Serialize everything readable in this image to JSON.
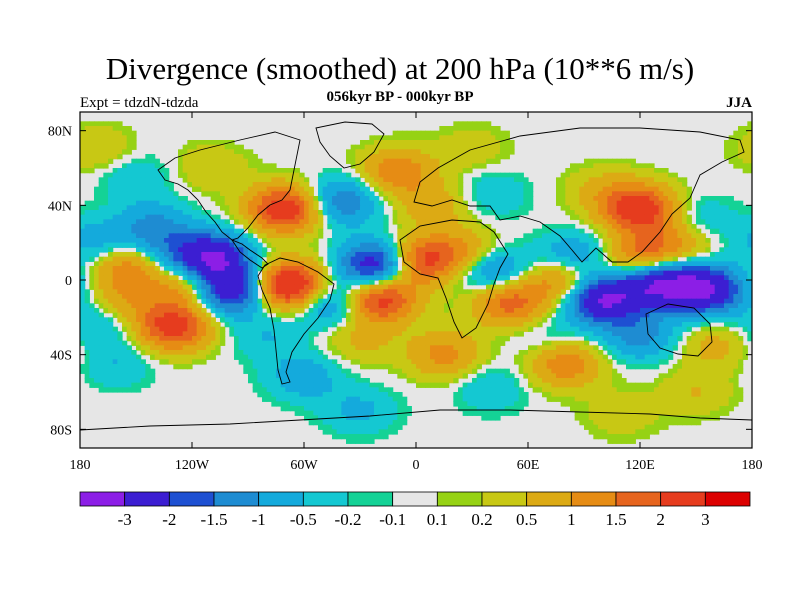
{
  "title": "Divergence (smoothed) at 200 hPa (10**6 m/s)",
  "left_label": "Expt = tdzdN-tdzda",
  "center_label": "056kyr BP - 000kyr BP",
  "right_label": "JJA",
  "map": {
    "lon_range": [
      -180,
      180
    ],
    "lat_range": [
      -90,
      90
    ],
    "lon_ticks": [
      {
        "value": -180,
        "label": "180"
      },
      {
        "value": -120,
        "label": "120W"
      },
      {
        "value": -60,
        "label": "60W"
      },
      {
        "value": 0,
        "label": "0"
      },
      {
        "value": 60,
        "label": "60E"
      },
      {
        "value": 120,
        "label": "120E"
      },
      {
        "value": 180,
        "label": "180"
      }
    ],
    "lat_ticks": [
      {
        "value": 80,
        "label": "80N"
      },
      {
        "value": 40,
        "label": "40N"
      },
      {
        "value": 0,
        "label": "0"
      },
      {
        "value": -40,
        "label": "40S"
      },
      {
        "value": -80,
        "label": "80S"
      }
    ],
    "background_color": "#e6e6e6",
    "color_levels": [
      -3.0,
      -2.0,
      -1.5,
      -1.0,
      -0.5,
      -0.2,
      -0.1,
      0.1,
      0.2,
      0.5,
      1.0,
      1.5,
      2.0,
      3.0
    ],
    "colors": [
      "#8c1ee6",
      "#3c1ed2",
      "#1e50d2",
      "#1e8cd2",
      "#14aadc",
      "#14c8d2",
      "#14d296",
      "#e6e6e6",
      "#96d214",
      "#c8c814",
      "#dcaa14",
      "#e68c14",
      "#e6641e",
      "#e63c1e",
      "#dc0000"
    ],
    "blobs": [
      {
        "lon": -110,
        "lat": 12,
        "value": -3.2
      },
      {
        "lon": -140,
        "lat": 10,
        "value": -1.5
      },
      {
        "lon": -150,
        "lat": 8,
        "value": 2.2
      },
      {
        "lon": -120,
        "lat": -2,
        "value": 1.6
      },
      {
        "lon": -155,
        "lat": -10,
        "value": 0.8
      },
      {
        "lon": -100,
        "lat": -5,
        "value": -3.0
      },
      {
        "lon": -68,
        "lat": -3,
        "value": 3.2
      },
      {
        "lon": -45,
        "lat": -12,
        "value": -1.5
      },
      {
        "lon": -20,
        "lat": -10,
        "value": 2.6
      },
      {
        "lon": -20,
        "lat": 8,
        "value": -3.1
      },
      {
        "lon": 0,
        "lat": 10,
        "value": 2.4
      },
      {
        "lon": 25,
        "lat": 14,
        "value": 1.2
      },
      {
        "lon": 40,
        "lat": 5,
        "value": -1.4
      },
      {
        "lon": 50,
        "lat": -12,
        "value": 1.8
      },
      {
        "lon": 80,
        "lat": 0,
        "value": 1.6
      },
      {
        "lon": 85,
        "lat": 12,
        "value": -1.2
      },
      {
        "lon": 100,
        "lat": -10,
        "value": -3.2
      },
      {
        "lon": 130,
        "lat": -2,
        "value": -2.8
      },
      {
        "lon": 155,
        "lat": -5,
        "value": -3.0
      },
      {
        "lon": 120,
        "lat": 12,
        "value": 1.6
      },
      {
        "lon": 140,
        "lat": 20,
        "value": 1.0
      },
      {
        "lon": 150,
        "lat": 32,
        "value": -0.6
      },
      {
        "lon": 120,
        "lat": 38,
        "value": 2.5
      },
      {
        "lon": 100,
        "lat": 48,
        "value": 0.6
      },
      {
        "lon": 40,
        "lat": 46,
        "value": -0.5
      },
      {
        "lon": 10,
        "lat": 40,
        "value": 0.8
      },
      {
        "lon": -10,
        "lat": 58,
        "value": 1.4
      },
      {
        "lon": -40,
        "lat": 42,
        "value": -1.5
      },
      {
        "lon": -70,
        "lat": 38,
        "value": 2.6
      },
      {
        "lon": -140,
        "lat": 28,
        "value": -1.2
      },
      {
        "lon": -170,
        "lat": 20,
        "value": -0.8
      },
      {
        "lon": -110,
        "lat": 60,
        "value": 0.5
      },
      {
        "lon": -150,
        "lat": 55,
        "value": -0.5
      },
      {
        "lon": -130,
        "lat": -25,
        "value": 2.4
      },
      {
        "lon": -170,
        "lat": -24,
        "value": -0.6
      },
      {
        "lon": -80,
        "lat": -30,
        "value": -0.5
      },
      {
        "lon": -30,
        "lat": -32,
        "value": 0.6
      },
      {
        "lon": 15,
        "lat": -40,
        "value": 1.2
      },
      {
        "lon": 70,
        "lat": -30,
        "value": -0.4
      },
      {
        "lon": 80,
        "lat": -45,
        "value": 1.4
      },
      {
        "lon": 120,
        "lat": -30,
        "value": -1.2
      },
      {
        "lon": 160,
        "lat": -35,
        "value": 0.7
      },
      {
        "lon": -160,
        "lat": -45,
        "value": -0.5
      },
      {
        "lon": -60,
        "lat": -52,
        "value": -0.8
      },
      {
        "lon": 40,
        "lat": -58,
        "value": -0.5
      },
      {
        "lon": 150,
        "lat": -60,
        "value": 0.5
      },
      {
        "lon": -30,
        "lat": -70,
        "value": -0.6
      },
      {
        "lon": 110,
        "lat": -72,
        "value": 0.4
      },
      {
        "lon": -170,
        "lat": 70,
        "value": 0.5
      },
      {
        "lon": 30,
        "lat": 70,
        "value": 0.4
      }
    ]
  },
  "colorbar": {
    "labels": [
      "-3",
      "-2",
      "-1.5",
      "-1",
      "-0.5",
      "-0.2",
      "-0.1",
      "0.1",
      "0.2",
      "0.5",
      "1",
      "1.5",
      "2",
      "3"
    ]
  }
}
